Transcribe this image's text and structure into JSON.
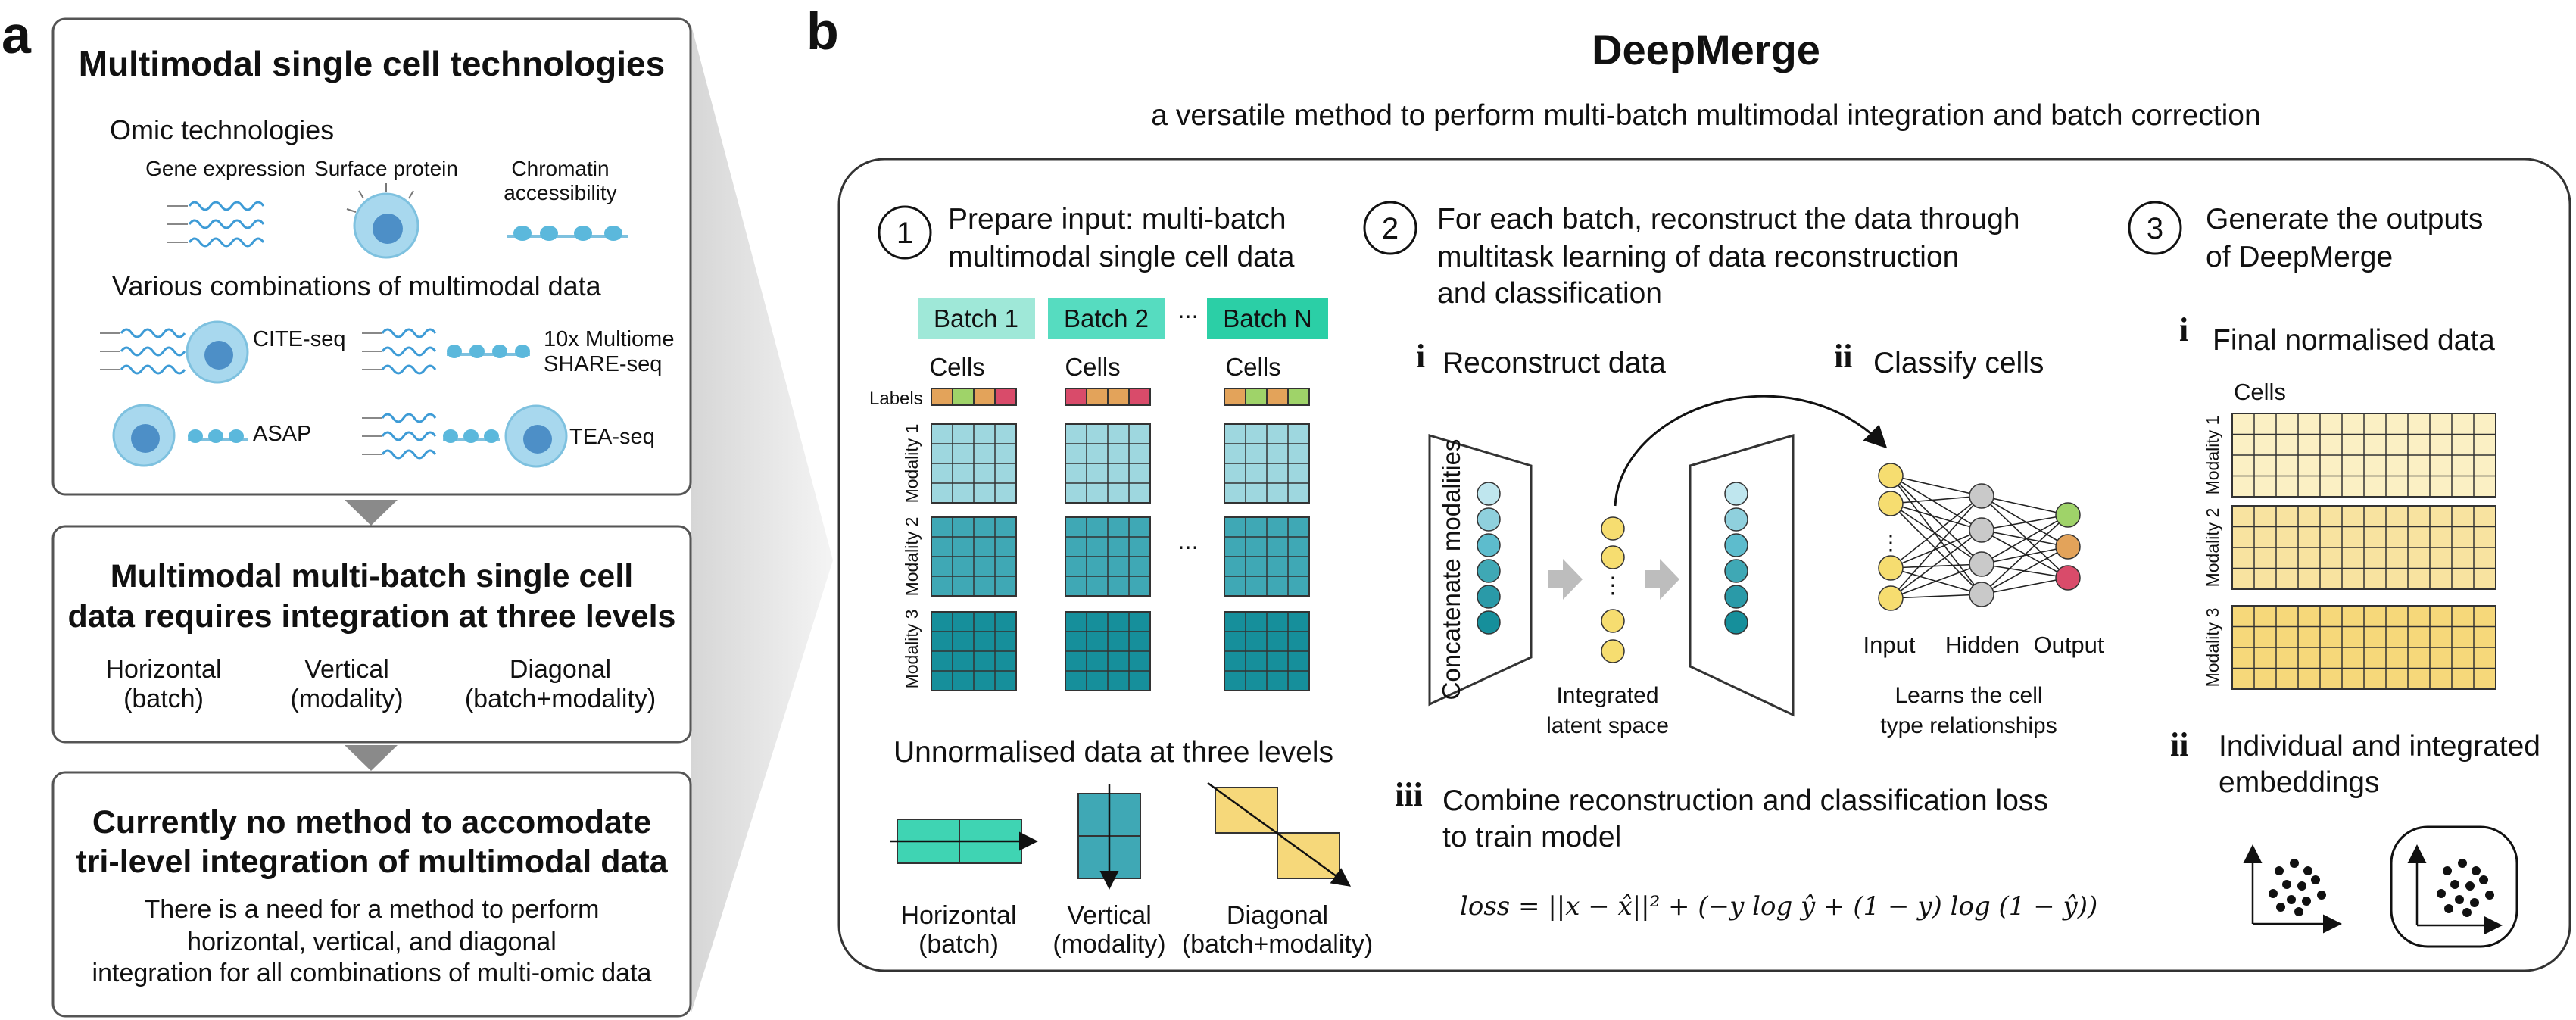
{
  "panel_a": {
    "letter": "a",
    "box1": {
      "title": "Multimodal single cell technologies",
      "omic_heading": "Omic technologies",
      "omics": [
        "Gene expression",
        "Surface protein",
        "Chromatin",
        "accessibility"
      ],
      "combos_heading": "Various combinations of multimodal data",
      "tech": [
        "CITE-seq",
        "10x Multiome",
        "SHARE-seq",
        "ASAP",
        "TEA-seq"
      ]
    },
    "box2": {
      "title_line1": "Multimodal multi-batch single cell",
      "title_line2": "data requires integration at three levels",
      "levels": [
        {
          "name": "Horizontal",
          "sub": "(batch)"
        },
        {
          "name": "Vertical",
          "sub": "(modality)"
        },
        {
          "name": "Diagonal",
          "sub": "(batch+modality)"
        }
      ]
    },
    "box3": {
      "title_line1": "Currently no method to accomodate",
      "title_line2": "tri-level integration of multimodal data",
      "body": [
        "There is a need for a method to perform",
        "horizontal, vertical, and diagonal",
        "integration for all combinations of multi-omic data"
      ]
    }
  },
  "panel_b": {
    "letter": "b",
    "title": "DeepMerge",
    "subtitle": "a versatile method to perform multi-batch multimodal integration and batch correction",
    "step1": {
      "num": "1",
      "line1": "Prepare input: multi-batch",
      "line2": "multimodal single cell data",
      "batches": [
        "Batch 1",
        "Batch 2",
        "Batch N"
      ],
      "ellipsis": "...",
      "cells_label": "Cells",
      "labels_label": "Labels",
      "modalities": [
        "Modality 1",
        "Modality 2",
        "Modality 3"
      ],
      "unnorm_heading": "Unnormalised data at three levels",
      "levels": [
        {
          "name": "Horizontal",
          "sub": "(batch)"
        },
        {
          "name": "Vertical",
          "sub": "(modality)"
        },
        {
          "name": "Diagonal",
          "sub": "(batch+modality)"
        }
      ]
    },
    "step2": {
      "num": "2",
      "line1": "For each batch, reconstruct the data through",
      "line2": "multitask learning of data reconstruction",
      "line3": "and classification",
      "i_num": "i",
      "i_label": "Reconstruct data",
      "ii_num": "ii",
      "ii_label": "Classify cells",
      "concat_label": "Concatenate modalities",
      "latent_line1": "Integrated",
      "latent_line2": "latent space",
      "nn_labels": [
        "Input",
        "Hidden",
        "Output"
      ],
      "learns_line1": "Learns the cell",
      "learns_line2": "type relationships",
      "iii_num": "iii",
      "iii_line1": "Combine reconstruction and classification loss",
      "iii_line2": "to train model",
      "loss_formula": "loss = ||x − x̂||² + (−y log ŷ + (1 − y) log (1 − ŷ))"
    },
    "step3": {
      "num": "3",
      "line1": "Generate the outputs",
      "line2": "of DeepMerge",
      "i_num": "i",
      "i_label": "Final normalised data",
      "cells_label": "Cells",
      "modalities": [
        "Modality 1",
        "Modality 2",
        "Modality 3"
      ],
      "ii_num": "ii",
      "ii_line1": "Individual and integrated",
      "ii_line2": "embeddings"
    }
  },
  "colors": {
    "teal_light": "#9ed7df",
    "teal_mid": "#3fa8b5",
    "teal_dark": "#168f9b",
    "batch_light": "#9fe8d8",
    "batch_mid": "#56dcc0",
    "batch_dark": "#2bcfa6",
    "yellow_light": "#fbf0c4",
    "yellow_mid": "#f8e3a0",
    "yellow": "#f6d87a",
    "node_yellow": "#f6dd70",
    "cell_blue": "#8ccde8",
    "wave_blue": "#3d9bd6",
    "green": "#9fd369",
    "orange": "#e3a35a",
    "red": "#d94b6a"
  }
}
